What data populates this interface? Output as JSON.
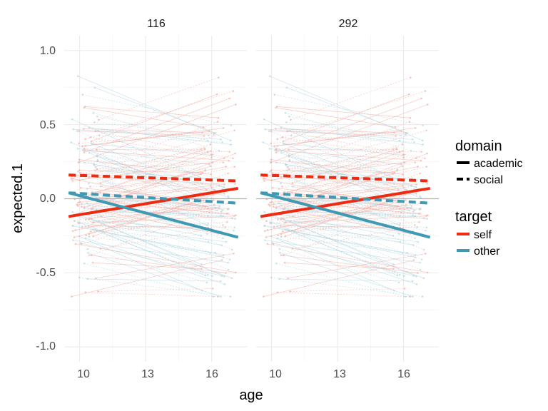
{
  "chart_data": {
    "type": "line",
    "facets": [
      "116",
      "292"
    ],
    "xlabel": "age",
    "ylabel": "expected.1",
    "xlim": [
      9.3,
      17.6
    ],
    "ylim": [
      -1.1,
      1.1
    ],
    "x_ticks": [
      10,
      13,
      16
    ],
    "x_tick_labels": [
      "10",
      "13",
      "16"
    ],
    "y_ticks": [
      -1.0,
      -0.5,
      0.0,
      0.5,
      1.0
    ],
    "y_tick_labels": [
      "-1.0",
      "-0.5",
      "0.0",
      "0.5",
      "1.0"
    ],
    "grid": true,
    "zero_line": 0,
    "legend_position": "right",
    "legends": [
      {
        "title": "domain",
        "entries": [
          {
            "label": "academic",
            "linetype": "solid"
          },
          {
            "label": "social",
            "linetype": "dashed"
          }
        ]
      },
      {
        "title": "target",
        "entries": [
          {
            "label": "self",
            "color": "#EE2A10"
          },
          {
            "label": "other",
            "color": "#3E99B3"
          }
        ]
      }
    ],
    "series": [
      {
        "domain": "academic",
        "target": "self",
        "color": "#EE2A10",
        "linetype": "solid",
        "x": [
          9.5,
          17.2
        ],
        "y": [
          -0.12,
          0.07
        ]
      },
      {
        "domain": "academic",
        "target": "other",
        "color": "#3E99B3",
        "linetype": "solid",
        "x": [
          9.5,
          17.2
        ],
        "y": [
          0.04,
          -0.26
        ]
      },
      {
        "domain": "social",
        "target": "self",
        "color": "#EE2A10",
        "linetype": "dashed",
        "x": [
          9.5,
          17.2
        ],
        "y": [
          0.16,
          0.12
        ]
      },
      {
        "domain": "social",
        "target": "other",
        "color": "#3E99B3",
        "linetype": "dashed",
        "x": [
          9.5,
          17.2
        ],
        "y": [
          0.04,
          -0.03
        ]
      }
    ],
    "individual_trajectories": {
      "description": "faint per-participant lines and points (self in light red, other in light blue)",
      "count_per_facet": 150,
      "age_range": [
        9.6,
        17.1
      ],
      "value_range": [
        -0.66,
        0.93
      ]
    }
  }
}
